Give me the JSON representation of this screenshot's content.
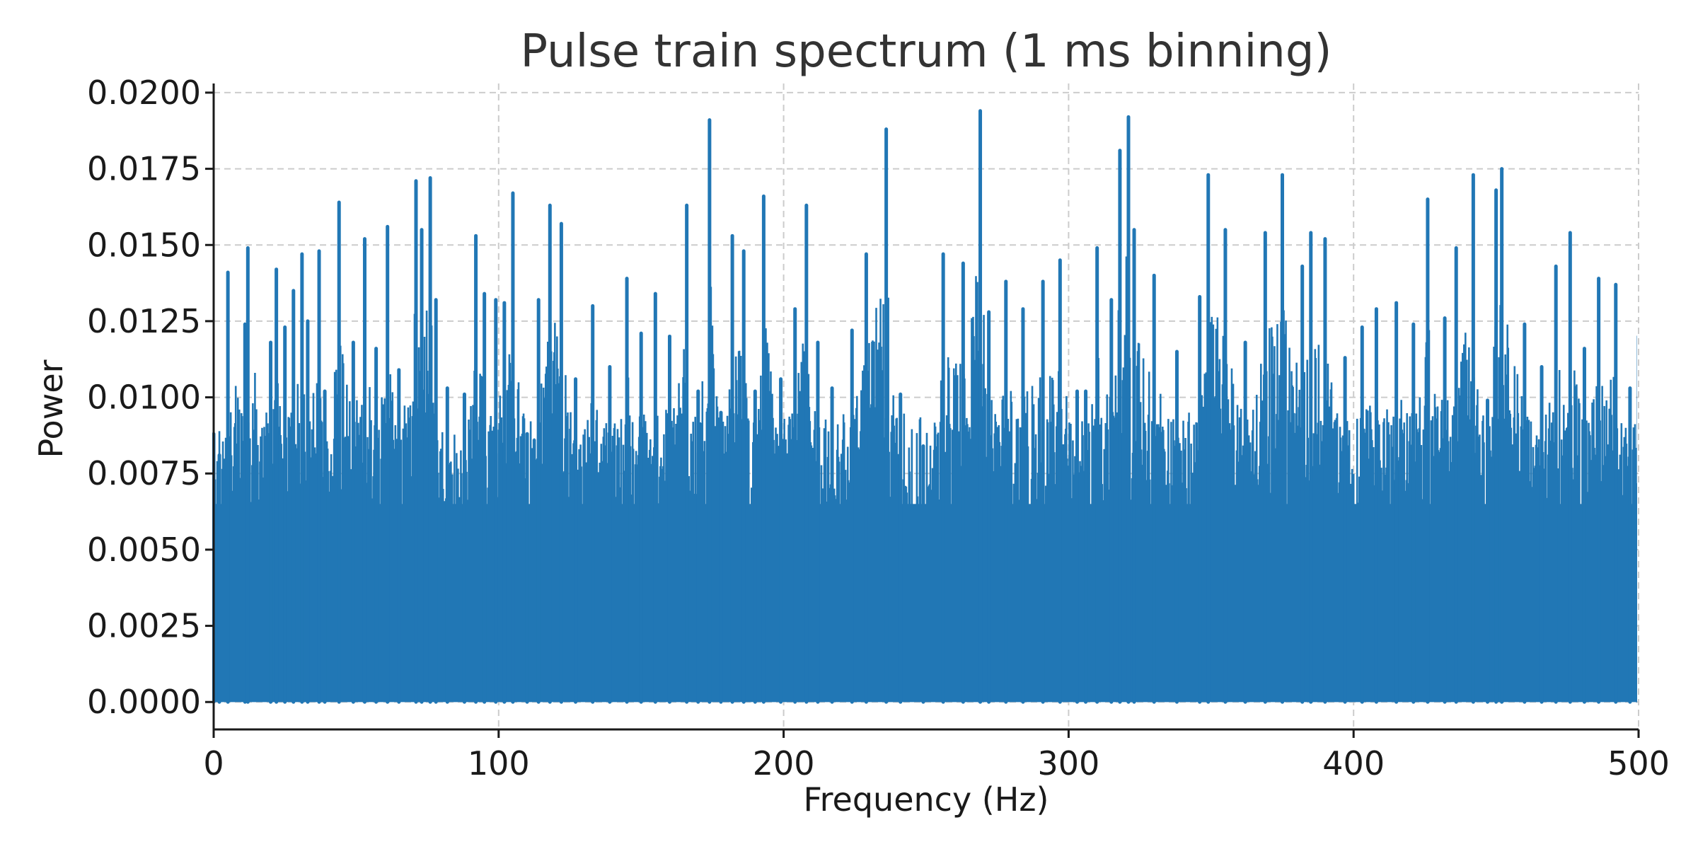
{
  "chart_data": {
    "type": "line",
    "title": "Pulse train spectrum (1 ms binning)",
    "xlabel": "Frequency (Hz)",
    "ylabel": "Power",
    "xlim": [
      0,
      500
    ],
    "ylim": [
      -0.0009,
      0.0203
    ],
    "grid": true,
    "x_ticks": [
      0,
      100,
      200,
      300,
      400,
      500
    ],
    "x_tick_labels": [
      "0",
      "100",
      "200",
      "300",
      "400",
      "500"
    ],
    "y_ticks": [
      0.0,
      0.0025,
      0.005,
      0.0075,
      0.01,
      0.0125,
      0.015,
      0.0175,
      0.02
    ],
    "y_tick_labels": [
      "0.0000",
      "0.0025",
      "0.0050",
      "0.0075",
      "0.0100",
      "0.0125",
      "0.0150",
      "0.0175",
      "0.0200"
    ],
    "series_color": "#2177b5",
    "series": [
      {
        "x": [
          0,
          2,
          5,
          11,
          12,
          20,
          22,
          25,
          28,
          31,
          33,
          37,
          39,
          44,
          49,
          53,
          57,
          61,
          65,
          71,
          73,
          76,
          78,
          82,
          88,
          92,
          95,
          99,
          102,
          105,
          110,
          114,
          118,
          122,
          127,
          133,
          139,
          145,
          150,
          155,
          160,
          166,
          170,
          174,
          178,
          182,
          186,
          190,
          193,
          199,
          204,
          208,
          212,
          217,
          224,
          229,
          236,
          241,
          249,
          256,
          263,
          269,
          272,
          278,
          284,
          291,
          297,
          303,
          306,
          310,
          315,
          318,
          321,
          323,
          330,
          338,
          346,
          349,
          355,
          362,
          369,
          375,
          382,
          385,
          390,
          397,
          403,
          408,
          415,
          421,
          426,
          432,
          436,
          442,
          447,
          450,
          452,
          460,
          466,
          471,
          476,
          481,
          486,
          492,
          497,
          500
        ],
        "y": [
          0.0088,
          0.0081,
          0.0141,
          0.0124,
          0.0149,
          0.0118,
          0.0142,
          0.0123,
          0.0135,
          0.0147,
          0.0125,
          0.0148,
          0.0102,
          0.0164,
          0.0118,
          0.0152,
          0.0116,
          0.0156,
          0.0109,
          0.0171,
          0.0155,
          0.0172,
          0.0132,
          0.0103,
          0.0101,
          0.0153,
          0.0134,
          0.0132,
          0.0131,
          0.0167,
          0.0088,
          0.0132,
          0.0163,
          0.0157,
          0.0106,
          0.013,
          0.011,
          0.0139,
          0.0121,
          0.0134,
          0.012,
          0.0163,
          0.0102,
          0.0191,
          0.0095,
          0.0153,
          0.0148,
          0.0102,
          0.0166,
          0.0106,
          0.0129,
          0.0163,
          0.0118,
          0.0103,
          0.0122,
          0.0147,
          0.0188,
          0.0101,
          0.0084,
          0.0147,
          0.0144,
          0.0194,
          0.0128,
          0.0138,
          0.0129,
          0.0138,
          0.0145,
          0.0102,
          0.0102,
          0.0149,
          0.0132,
          0.0181,
          0.0192,
          0.0155,
          0.014,
          0.0115,
          0.0133,
          0.0173,
          0.0155,
          0.0118,
          0.0154,
          0.0173,
          0.0143,
          0.0154,
          0.0152,
          0.0113,
          0.0123,
          0.0129,
          0.0131,
          0.0124,
          0.0165,
          0.0126,
          0.0149,
          0.0173,
          0.0099,
          0.0168,
          0.0175,
          0.0124,
          0.011,
          0.0143,
          0.0154,
          0.0116,
          0.0139,
          0.0137,
          0.0103,
          0.012
        ]
      }
    ]
  }
}
